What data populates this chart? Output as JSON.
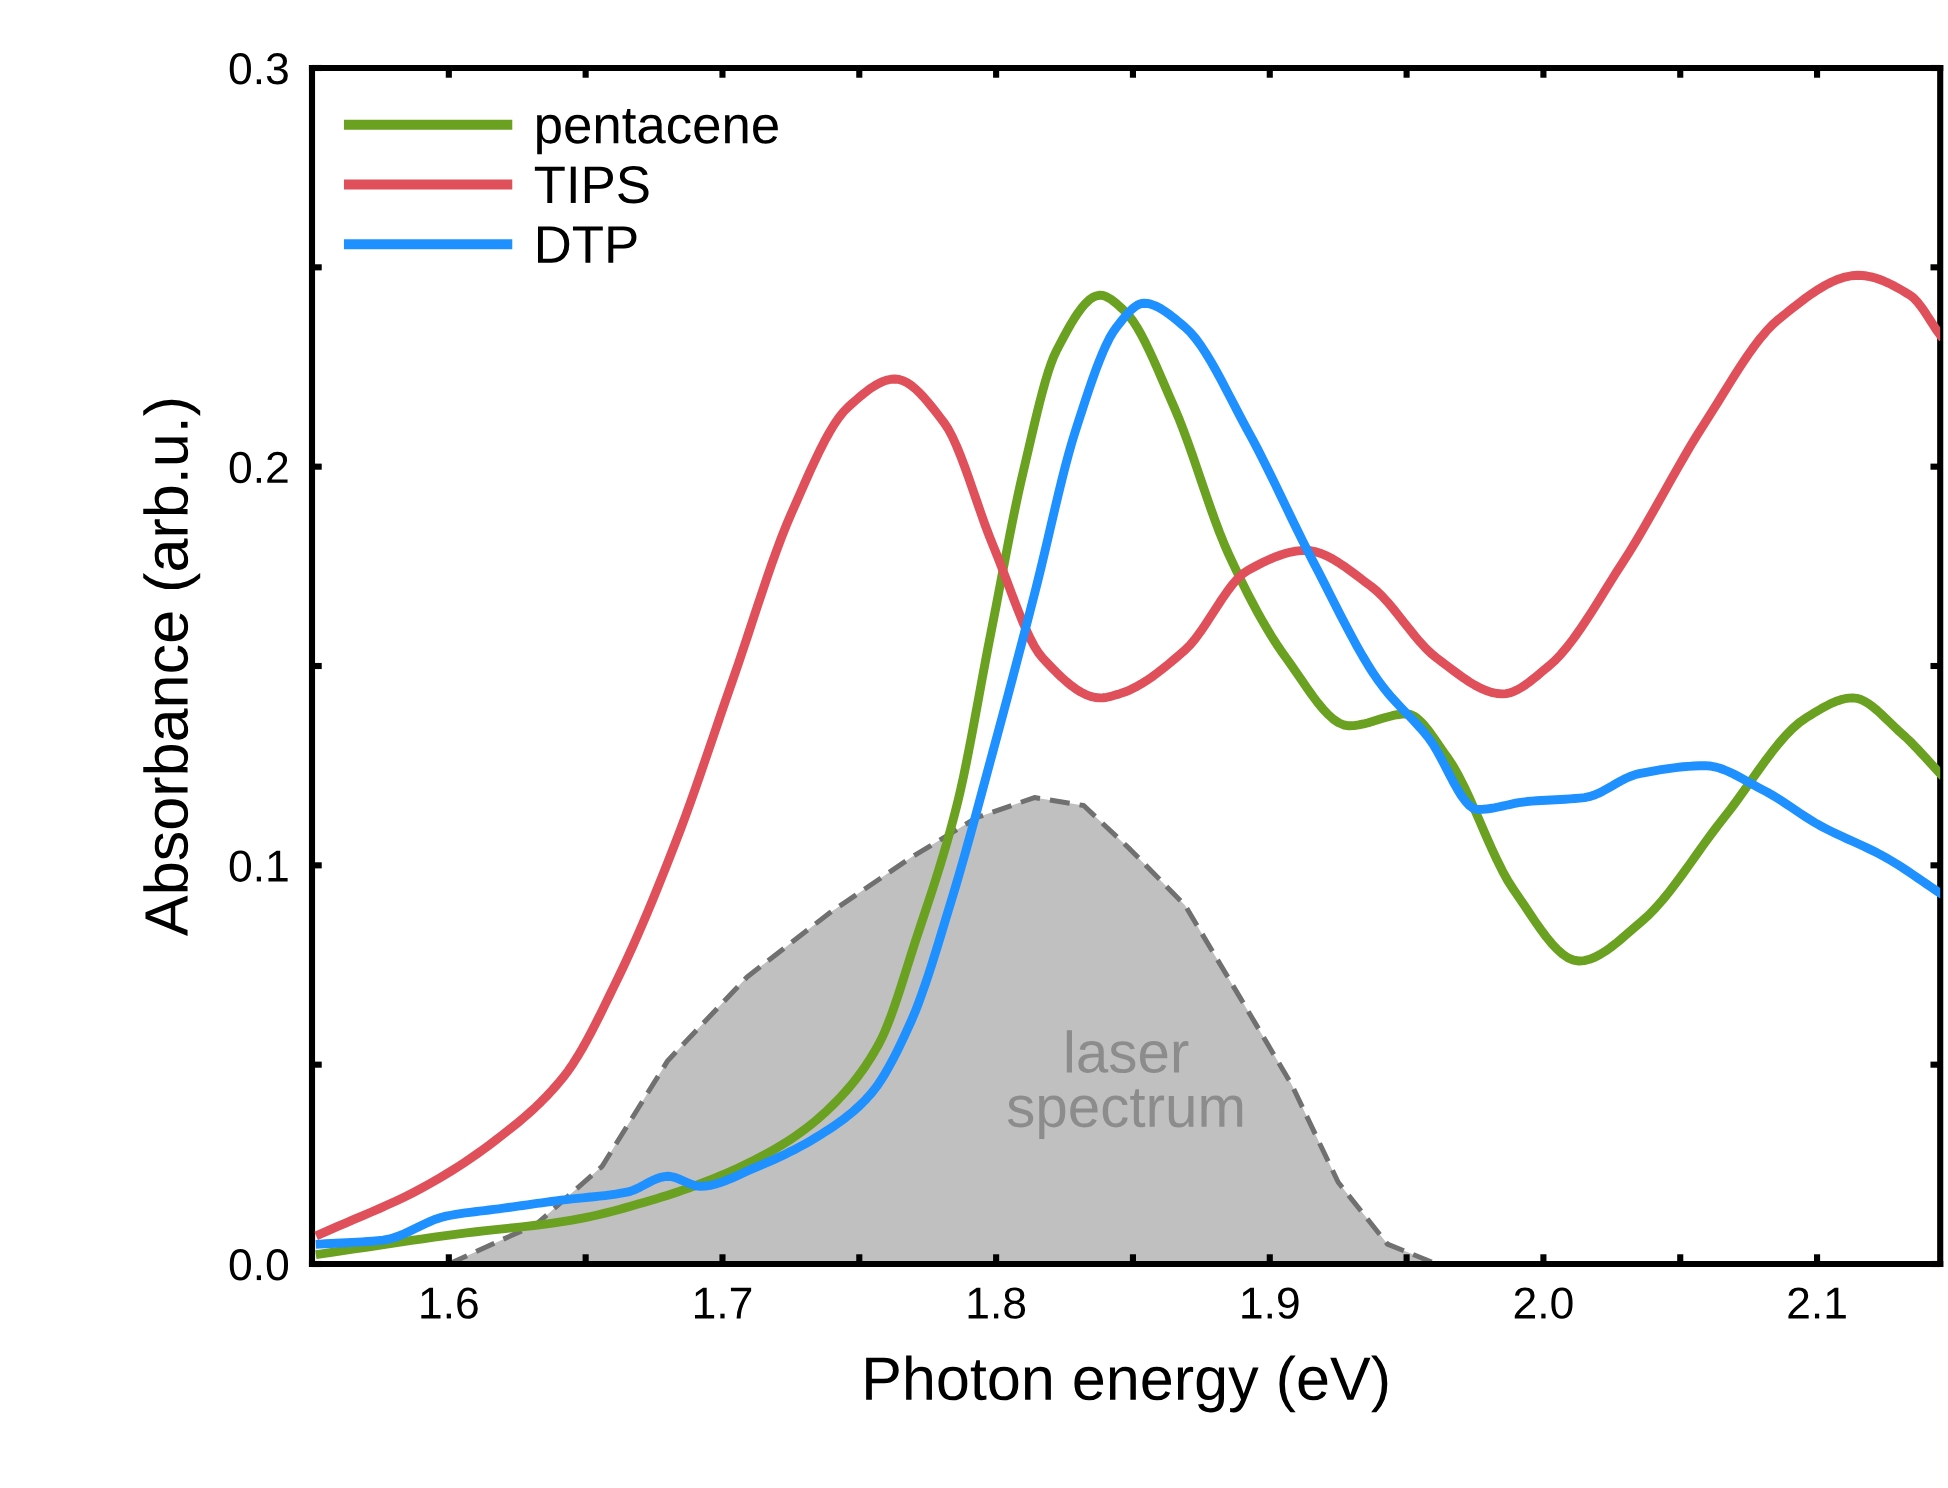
{
  "chart_data": {
    "type": "line",
    "xlabel": "Photon energy (eV)",
    "ylabel": "Absorbance (arb.u.)",
    "xlim": [
      1.55,
      2.145
    ],
    "ylim": [
      0,
      0.3
    ],
    "xticks": [
      1.6,
      {
        "value": 1.65,
        "label": null
      },
      1.7,
      {
        "value": 1.75,
        "label": null
      },
      1.8,
      {
        "value": 1.85,
        "label": null
      },
      1.9,
      {
        "value": 1.95,
        "label": null
      },
      {
        "value": 2.0,
        "label": "2.0"
      },
      {
        "value": 2.05,
        "label": null
      },
      2.1
    ],
    "yticks": [
      {
        "value": 0,
        "label": "0.0"
      },
      {
        "value": 0.05,
        "label": null
      },
      0.1,
      {
        "value": 0.15,
        "label": null
      },
      0.2,
      {
        "value": 0.25,
        "label": null
      },
      0.3
    ],
    "grid": false,
    "legend": "top left",
    "line_style": "solid",
    "marker": "none",
    "series": [
      {
        "type": "area",
        "color": "#c0c0c0",
        "line_style": "dashed",
        "x": [
          1.6,
          1.632,
          1.656,
          1.68,
          1.709,
          1.739,
          1.769,
          1.793,
          1.814,
          1.832,
          1.849,
          1.869,
          1.889,
          1.908,
          1.925,
          1.943,
          1.961
        ],
        "values": [
          0,
          0.01,
          0.0245,
          0.051,
          0.072,
          0.088,
          0.102,
          0.112,
          0.117,
          0.115,
          0.104,
          0.09,
          0.067,
          0.045,
          0.0205,
          0.005,
          0
        ]
      },
      {
        "name": "pentacene",
        "color": "#6aa121",
        "x": [
          1.553,
          1.603,
          1.645,
          1.674,
          1.697,
          1.722,
          1.739,
          1.757,
          1.771,
          1.786,
          1.798,
          1.81,
          1.822,
          1.838,
          1.847,
          1.865,
          1.885,
          1.906,
          1.929,
          1.95,
          1.965,
          1.989,
          2.013,
          2.036,
          2.066,
          2.096,
          2.113,
          2.131,
          2.145
        ],
        "values": [
          0.0025,
          0.0075,
          0.011,
          0.016,
          0.0215,
          0.03,
          0.039,
          0.055,
          0.082,
          0.116,
          0.158,
          0.199,
          0.229,
          0.243,
          0.239,
          0.215,
          0.178,
          0.152,
          0.135,
          0.138,
          0.127,
          0.094,
          0.076,
          0.086,
          0.112,
          0.137,
          0.142,
          0.133,
          0.123
        ]
      },
      {
        "name": "TIPS",
        "color": "#e0505a",
        "x": [
          1.553,
          1.59,
          1.617,
          1.642,
          1.662,
          1.683,
          1.704,
          1.725,
          1.746,
          1.763,
          1.781,
          1.799,
          1.817,
          1.838,
          1.845,
          1.869,
          1.892,
          1.913,
          1.937,
          1.961,
          1.985,
          2.002,
          2.029,
          2.059,
          2.086,
          2.115,
          2.134,
          2.145
        ],
        "values": [
          0.0075,
          0.019,
          0.031,
          0.047,
          0.072,
          0.106,
          0.147,
          0.188,
          0.215,
          0.222,
          0.211,
          0.18,
          0.152,
          0.142,
          0.143,
          0.154,
          0.174,
          0.179,
          0.17,
          0.152,
          0.143,
          0.15,
          0.176,
          0.211,
          0.237,
          0.248,
          0.243,
          0.233
        ]
      },
      {
        "name": "DTP",
        "color": "#1e90ff",
        "x": [
          1.553,
          1.576,
          1.599,
          1.62,
          1.641,
          1.665,
          1.68,
          1.692,
          1.713,
          1.736,
          1.754,
          1.769,
          1.784,
          1.799,
          1.814,
          1.829,
          1.844,
          1.854,
          1.869,
          1.892,
          1.916,
          1.94,
          1.958,
          1.976,
          1.994,
          2.015,
          2.035,
          2.059,
          2.08,
          2.101,
          2.125,
          2.145
        ],
        "values": [
          0.005,
          0.006,
          0.012,
          0.014,
          0.016,
          0.018,
          0.022,
          0.0195,
          0.0245,
          0.0325,
          0.0425,
          0.061,
          0.092,
          0.129,
          0.168,
          0.209,
          0.235,
          0.241,
          0.235,
          0.209,
          0.176,
          0.146,
          0.132,
          0.114,
          0.116,
          0.117,
          0.123,
          0.125,
          0.119,
          0.11,
          0.102,
          0.093
        ]
      }
    ],
    "annotations": [
      "laser\nspectrum"
    ]
  }
}
